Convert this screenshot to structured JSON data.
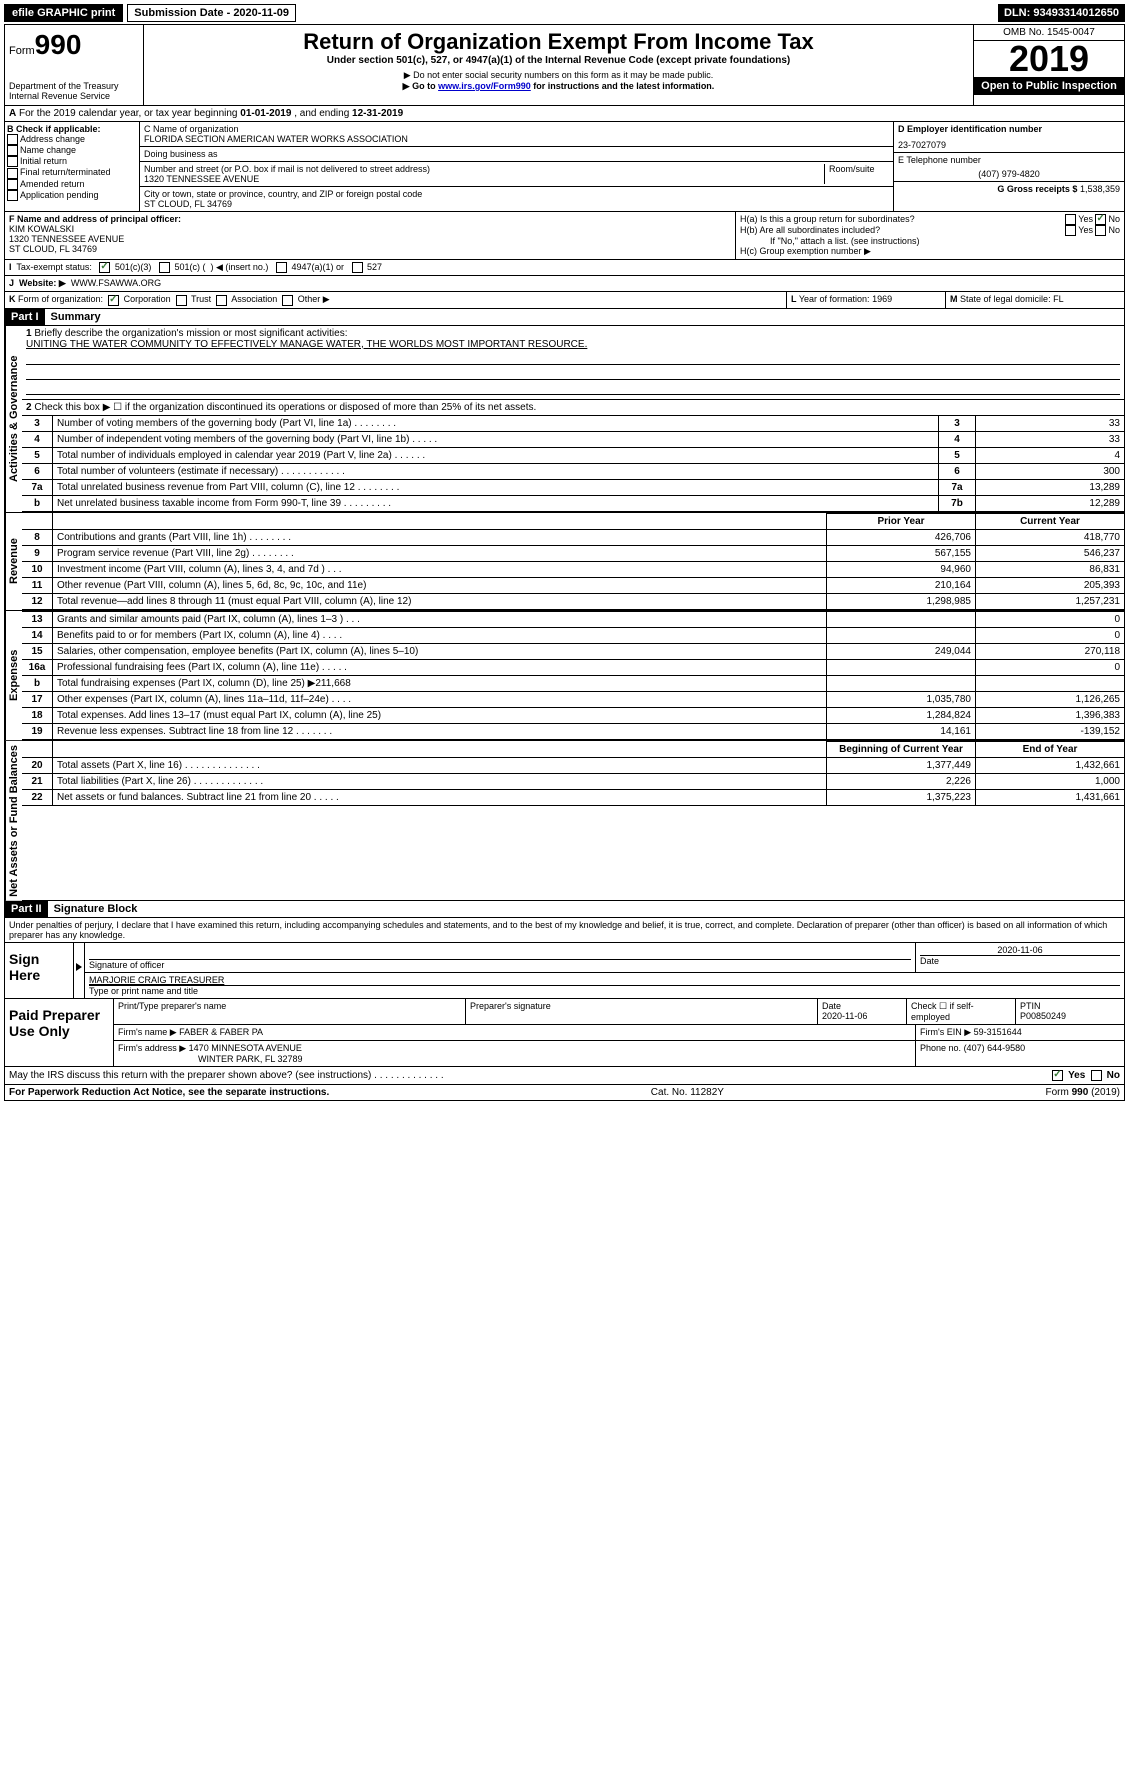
{
  "topbar": {
    "efile": "efile GRAPHIC print",
    "submission": "Submission Date - 2020-11-09",
    "dln": "DLN: 93493314012650"
  },
  "header": {
    "form_prefix": "Form",
    "form_number": "990",
    "dept": "Department of the Treasury\nInternal Revenue Service",
    "title": "Return of Organization Exempt From Income Tax",
    "subtitle": "Under section 501(c), 527, or 4947(a)(1) of the Internal Revenue Code (except private foundations)",
    "note1": "▶ Do not enter social security numbers on this form as it may be made public.",
    "note2_pre": "▶ Go to ",
    "note2_link": "www.irs.gov/Form990",
    "note2_post": " for instructions and the latest information.",
    "omb": "OMB No. 1545-0047",
    "year": "2019",
    "inspection": "Open to Public Inspection"
  },
  "row_a": {
    "label": "A",
    "text_pre": "For the 2019 calendar year, or tax year beginning ",
    "begin": "01-01-2019",
    "mid": " , and ending ",
    "end": "12-31-2019"
  },
  "section_b": {
    "title": "B Check if applicable:",
    "items": [
      "Address change",
      "Name change",
      "Initial return",
      "Final return/terminated",
      "Amended return",
      "Application pending"
    ]
  },
  "section_c": {
    "name_label": "C Name of organization",
    "name": "FLORIDA SECTION AMERICAN WATER WORKS ASSOCIATION",
    "dba_label": "Doing business as",
    "addr_label": "Number and street (or P.O. box if mail is not delivered to street address)",
    "room_label": "Room/suite",
    "addr": "1320 TENNESSEE AVENUE",
    "city_label": "City or town, state or province, country, and ZIP or foreign postal code",
    "city": "ST CLOUD, FL  34769"
  },
  "section_d": {
    "ein_label": "D Employer identification number",
    "ein": "23-7027079",
    "phone_label": "E Telephone number",
    "phone": "(407) 979-4820",
    "gross_label": "G Gross receipts $",
    "gross": "1,538,359"
  },
  "section_f": {
    "label": "F Name and address of principal officer:",
    "name": "KIM KOWALSKI",
    "addr1": "1320 TENNESSEE AVENUE",
    "addr2": "ST CLOUD, FL  34769"
  },
  "section_h": {
    "ha": "H(a) Is this a group return for subordinates?",
    "hb": "H(b) Are all subordinates included?",
    "hb_note": "If \"No,\" attach a list. (see instructions)",
    "hc": "H(c) Group exemption number ▶",
    "yes": "Yes",
    "no": "No"
  },
  "row_i": {
    "label": "I",
    "text": "Tax-exempt status:",
    "opt1": "501(c)(3)",
    "opt2_pre": "501(c) (",
    "opt2_post": ") ◀ (insert no.)",
    "opt3": "4947(a)(1) or",
    "opt4": "527"
  },
  "row_j": {
    "label": "J",
    "text": "Website: ▶",
    "value": "WWW.FSAWWA.ORG"
  },
  "row_k": {
    "label": "K",
    "text": "Form of organization:",
    "corp": "Corporation",
    "trust": "Trust",
    "assoc": "Association",
    "other": "Other ▶"
  },
  "row_l": {
    "label": "L",
    "text": "Year of formation:",
    "value": "1969"
  },
  "row_m": {
    "label": "M",
    "text": "State of legal domicile:",
    "value": "FL"
  },
  "part1": {
    "header": "Part I",
    "title": "Summary",
    "q1": "Briefly describe the organization's mission or most significant activities:",
    "mission": "UNITING THE WATER COMMUNITY TO EFFECTIVELY MANAGE WATER, THE WORLDS MOST IMPORTANT RESOURCE.",
    "q2": "Check this box ▶ ☐ if the organization discontinued its operations or disposed of more than 25% of its net assets.",
    "sections": {
      "governance": "Activities & Governance",
      "revenue": "Revenue",
      "expenses": "Expenses",
      "netassets": "Net Assets or Fund Balances"
    },
    "col_headers": {
      "prior": "Prior Year",
      "current": "Current Year",
      "begin": "Beginning of Current Year",
      "end": "End of Year"
    },
    "rows": [
      {
        "n": "3",
        "label": "Number of voting members of the governing body (Part VI, line 1a)  .    .    .    .    .    .    .    .",
        "box": "3",
        "v": "33"
      },
      {
        "n": "4",
        "label": "Number of independent voting members of the governing body (Part VI, line 1b)  .    .    .    .    .",
        "box": "4",
        "v": "33"
      },
      {
        "n": "5",
        "label": "Total number of individuals employed in calendar year 2019 (Part V, line 2a)  .    .    .    .    .    .",
        "box": "5",
        "v": "4"
      },
      {
        "n": "6",
        "label": "Total number of volunteers (estimate if necessary)  .    .    .    .    .    .    .    .    .    .    .    .",
        "box": "6",
        "v": "300"
      },
      {
        "n": "7a",
        "label": "Total unrelated business revenue from Part VIII, column (C), line 12  .    .    .    .    .    .    .    .",
        "box": "7a",
        "v": "13,289"
      },
      {
        "n": "b",
        "label": "Net unrelated business taxable income from Form 990-T, line 39  .    .    .    .    .    .    .    .    .",
        "box": "7b",
        "v": "12,289"
      }
    ],
    "rev_rows": [
      {
        "n": "8",
        "label": "Contributions and grants (Part VIII, line 1h)  .    .    .    .    .    .    .    .",
        "p": "426,706",
        "c": "418,770"
      },
      {
        "n": "9",
        "label": "Program service revenue (Part VIII, line 2g)  .    .    .    .    .    .    .    .",
        "p": "567,155",
        "c": "546,237"
      },
      {
        "n": "10",
        "label": "Investment income (Part VIII, column (A), lines 3, 4, and 7d )  .    .    .",
        "p": "94,960",
        "c": "86,831"
      },
      {
        "n": "11",
        "label": "Other revenue (Part VIII, column (A), lines 5, 6d, 8c, 9c, 10c, and 11e)",
        "p": "210,164",
        "c": "205,393"
      },
      {
        "n": "12",
        "label": "Total revenue—add lines 8 through 11 (must equal Part VIII, column (A), line 12)",
        "p": "1,298,985",
        "c": "1,257,231"
      }
    ],
    "exp_rows": [
      {
        "n": "13",
        "label": "Grants and similar amounts paid (Part IX, column (A), lines 1–3 )  .    .    .",
        "p": "",
        "c": "0"
      },
      {
        "n": "14",
        "label": "Benefits paid to or for members (Part IX, column (A), line 4)  .    .    .    .",
        "p": "",
        "c": "0"
      },
      {
        "n": "15",
        "label": "Salaries, other compensation, employee benefits (Part IX, column (A), lines 5–10)",
        "p": "249,044",
        "c": "270,118"
      },
      {
        "n": "16a",
        "label": "Professional fundraising fees (Part IX, column (A), line 11e)  .    .    .    .    .",
        "p": "",
        "c": "0"
      },
      {
        "n": "b",
        "label": "Total fundraising expenses (Part IX, column (D), line 25) ▶211,668",
        "p": "",
        "c": ""
      },
      {
        "n": "17",
        "label": "Other expenses (Part IX, column (A), lines 11a–11d, 11f–24e)  .    .    .    .",
        "p": "1,035,780",
        "c": "1,126,265"
      },
      {
        "n": "18",
        "label": "Total expenses. Add lines 13–17 (must equal Part IX, column (A), line 25)",
        "p": "1,284,824",
        "c": "1,396,383"
      },
      {
        "n": "19",
        "label": "Revenue less expenses. Subtract line 18 from line 12  .    .    .    .    .    .    .",
        "p": "14,161",
        "c": "-139,152"
      }
    ],
    "net_rows": [
      {
        "n": "20",
        "label": "Total assets (Part X, line 16)  .    .    .    .    .    .    .    .    .    .    .    .    .    .",
        "p": "1,377,449",
        "c": "1,432,661"
      },
      {
        "n": "21",
        "label": "Total liabilities (Part X, line 26)  .    .    .    .    .    .    .    .    .    .    .    .    .",
        "p": "2,226",
        "c": "1,000"
      },
      {
        "n": "22",
        "label": "Net assets or fund balances. Subtract line 21 from line 20  .    .    .    .    .",
        "p": "1,375,223",
        "c": "1,431,661"
      }
    ]
  },
  "part2": {
    "header": "Part II",
    "title": "Signature Block",
    "declaration": "Under penalties of perjury, I declare that I have examined this return, including accompanying schedules and statements, and to the best of my knowledge and belief, it is true, correct, and complete. Declaration of preparer (other than officer) is based on all information of which preparer has any knowledge.",
    "sign_here": "Sign Here",
    "sig_officer": "Signature of officer",
    "date": "2020-11-06",
    "date_label": "Date",
    "officer_name": "MARJORIE CRAIG  TREASURER",
    "officer_name_label": "Type or print name and title",
    "paid_preparer": "Paid Preparer Use Only",
    "prep_name_label": "Print/Type preparer's name",
    "prep_sig_label": "Preparer's signature",
    "prep_date_label": "Date",
    "prep_date": "2020-11-06",
    "check_label": "Check ☐ if self-employed",
    "ptin_label": "PTIN",
    "ptin": "P00850249",
    "firm_name_label": "Firm's name    ▶",
    "firm_name": "FABER & FABER PA",
    "firm_ein_label": "Firm's EIN ▶",
    "firm_ein": "59-3151644",
    "firm_addr_label": "Firm's address ▶",
    "firm_addr1": "1470 MINNESOTA AVENUE",
    "firm_addr2": "WINTER PARK, FL  32789",
    "phone_label": "Phone no.",
    "phone": "(407) 644-9580",
    "discuss": "May the IRS discuss this return with the preparer shown above? (see instructions)  .    .    .    .    .    .    .    .    .    .    .    .    .",
    "yes": "Yes",
    "no": "No"
  },
  "footer": {
    "left": "For Paperwork Reduction Act Notice, see the separate instructions.",
    "center": "Cat. No. 11282Y",
    "right": "Form 990 (2019)"
  }
}
